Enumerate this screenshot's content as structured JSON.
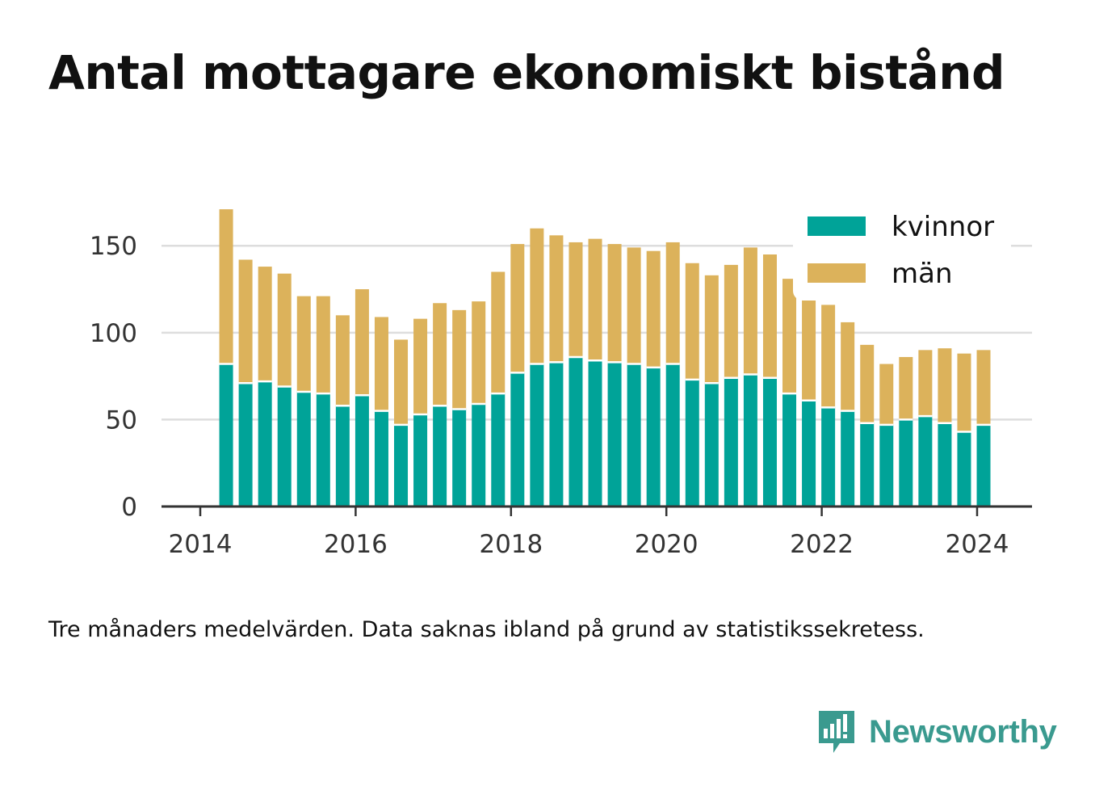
{
  "title": "Antal mottagare ekonomiskt bistånd",
  "caption": "Tre månaders medelvärden. Data saknas ibland på grund av statistikssekretess.",
  "brand": {
    "name": "Newsworthy",
    "color": "#3a9a8f"
  },
  "chart_data": {
    "type": "bar",
    "stacked": true,
    "x": [
      "2014-05",
      "2014-08",
      "2014-11",
      "2015-02",
      "2015-05",
      "2015-08",
      "2015-11",
      "2016-02",
      "2016-05",
      "2016-08",
      "2016-11",
      "2017-02",
      "2017-05",
      "2017-08",
      "2017-11",
      "2018-02",
      "2018-05",
      "2018-08",
      "2018-11",
      "2019-02",
      "2019-05",
      "2019-08",
      "2019-11",
      "2020-02",
      "2020-05",
      "2020-08",
      "2020-11",
      "2021-02",
      "2021-05",
      "2021-08",
      "2021-11",
      "2022-02",
      "2022-05",
      "2022-08",
      "2022-11",
      "2023-02",
      "2023-05",
      "2023-08",
      "2023-11",
      "2024-02"
    ],
    "series": [
      {
        "name": "kvinnor",
        "color": "#00a398",
        "values": [
          82,
          71,
          72,
          69,
          66,
          65,
          58,
          64,
          55,
          47,
          53,
          58,
          56,
          59,
          65,
          77,
          82,
          83,
          86,
          84,
          83,
          82,
          80,
          82,
          73,
          71,
          74,
          76,
          74,
          65,
          61,
          57,
          55,
          48,
          47,
          50,
          52,
          48,
          43,
          47
        ]
      },
      {
        "name": "män",
        "color": "#dcb25b",
        "values": [
          89,
          71,
          66,
          65,
          55,
          56,
          52,
          61,
          54,
          49,
          55,
          59,
          57,
          59,
          70,
          74,
          78,
          73,
          66,
          70,
          68,
          67,
          67,
          70,
          67,
          62,
          65,
          73,
          71,
          66,
          60,
          59,
          51,
          45,
          35,
          36,
          38,
          43,
          45,
          43
        ]
      }
    ],
    "xticks": [
      "2014",
      "2016",
      "2018",
      "2020",
      "2022",
      "2024"
    ],
    "yticks": [
      "0",
      "50",
      "100",
      "150"
    ],
    "ylim": [
      0,
      178
    ],
    "grid": true,
    "legend_position": "top-right",
    "xlabel": "",
    "ylabel": ""
  }
}
